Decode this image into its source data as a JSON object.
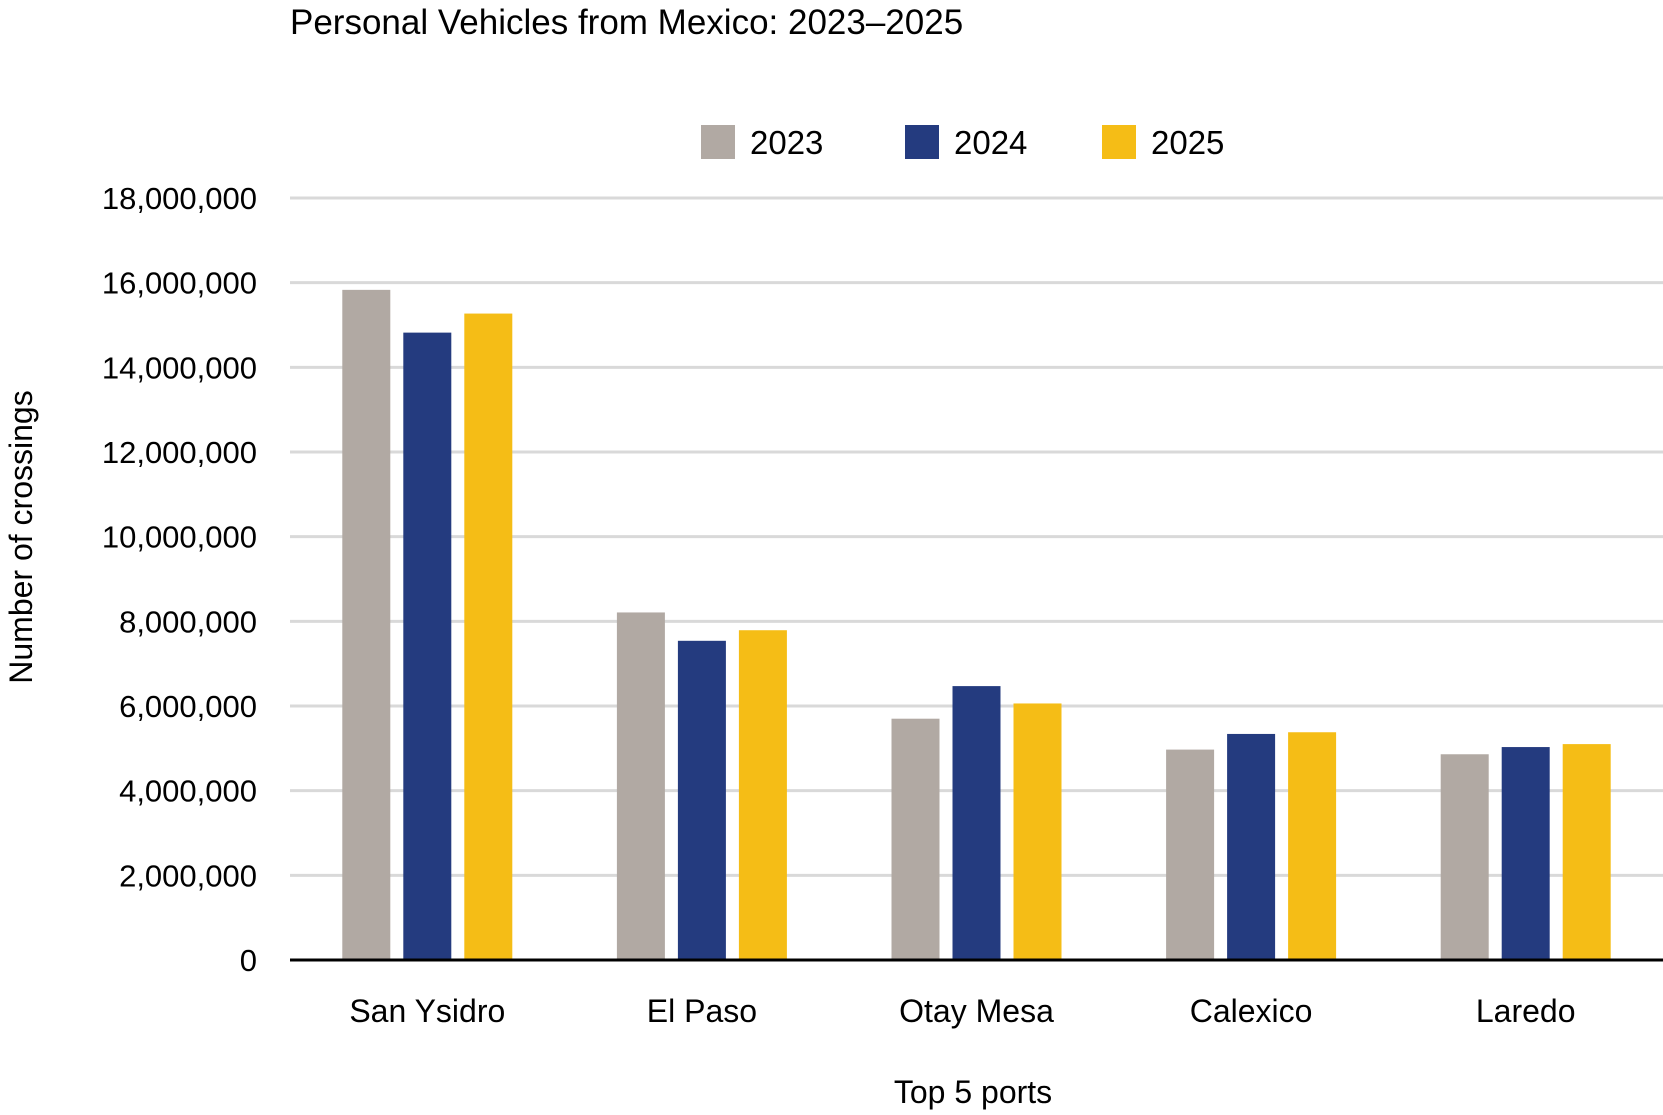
{
  "chart_data": {
    "type": "bar",
    "title": "Personal Vehicles from Mexico: 2023–2025",
    "xlabel": "Top 5 ports",
    "ylabel": "Number of crossings",
    "categories": [
      "San Ysidro",
      "El Paso",
      "Otay Mesa",
      "Calexico",
      "Laredo"
    ],
    "series": [
      {
        "name": "2023",
        "color": "#b1a9a3",
        "values": [
          15830000,
          8210000,
          5700000,
          4970000,
          4860000
        ]
      },
      {
        "name": "2024",
        "color": "#243b7f",
        "values": [
          14820000,
          7540000,
          6470000,
          5340000,
          5030000
        ]
      },
      {
        "name": "2025",
        "color": "#f5bd16",
        "values": [
          15270000,
          7790000,
          6060000,
          5380000,
          5100000
        ]
      }
    ],
    "ylim": [
      0,
      18000000
    ],
    "yticks": [
      "0",
      "2,000,000",
      "4,000,000",
      "6,000,000",
      "8,000,000",
      "10,000,000",
      "12,000,000",
      "14,000,000",
      "16,000,000",
      "18,000,000"
    ],
    "grid": true,
    "legend_position": "top-center"
  }
}
